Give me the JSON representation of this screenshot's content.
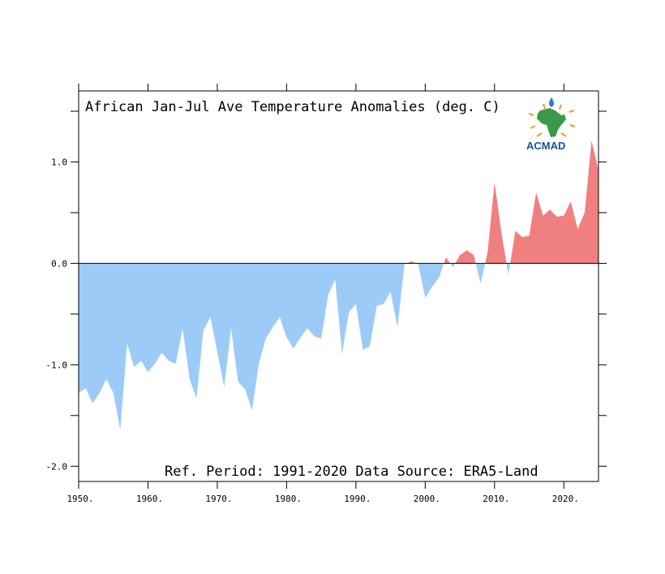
{
  "chart_data": {
    "type": "area",
    "title": "African Jan-Jul Ave Temperature Anomalies (deg. C)",
    "footnote": "Ref. Period: 1991-2020 Data Source: ERA5-Land",
    "logo_text": "ACMAD",
    "xlim": [
      1950,
      2025
    ],
    "ylim": [
      -2.15,
      1.7
    ],
    "x_ticks": [
      1950,
      1960,
      1970,
      1980,
      1990,
      2000,
      2010,
      2020
    ],
    "x_tick_labels": [
      "1950.",
      "1960.",
      "1970.",
      "1980.",
      "1990.",
      "2000.",
      "2010.",
      "2020."
    ],
    "y_ticks": [
      1.0,
      0.0,
      -1.0,
      -2.0
    ],
    "y_tick_labels": [
      "1.0",
      "0.0",
      "-1.0",
      "-2.0"
    ],
    "colors": {
      "positive": "#f08080",
      "negative": "#9ccbf7"
    },
    "x": [
      1950,
      1951,
      1952,
      1953,
      1954,
      1955,
      1956,
      1957,
      1958,
      1959,
      1960,
      1961,
      1962,
      1963,
      1964,
      1965,
      1966,
      1967,
      1968,
      1969,
      1970,
      1971,
      1972,
      1973,
      1974,
      1975,
      1976,
      1977,
      1978,
      1979,
      1980,
      1981,
      1982,
      1983,
      1984,
      1985,
      1986,
      1987,
      1988,
      1989,
      1990,
      1991,
      1992,
      1993,
      1994,
      1995,
      1996,
      1997,
      1998,
      1999,
      2000,
      2001,
      2002,
      2003,
      2004,
      2005,
      2006,
      2007,
      2008,
      2009,
      2010,
      2011,
      2012,
      2013,
      2014,
      2015,
      2016,
      2017,
      2018,
      2019,
      2020,
      2021,
      2022,
      2023,
      2024,
      2025
    ],
    "values": [
      -1.28,
      -1.23,
      -1.38,
      -1.28,
      -1.14,
      -1.28,
      -1.64,
      -0.79,
      -1.02,
      -0.96,
      -1.07,
      -0.99,
      -0.88,
      -0.96,
      -0.99,
      -0.64,
      -1.14,
      -1.33,
      -0.66,
      -0.53,
      -0.87,
      -1.22,
      -0.64,
      -1.17,
      -1.24,
      -1.45,
      -0.99,
      -0.74,
      -0.63,
      -0.53,
      -0.73,
      -0.84,
      -0.73,
      -0.64,
      -0.72,
      -0.74,
      -0.31,
      -0.16,
      -0.89,
      -0.48,
      -0.4,
      -0.85,
      -0.82,
      -0.42,
      -0.4,
      -0.28,
      -0.63,
      -0.01,
      0.02,
      -0.01,
      -0.34,
      -0.23,
      -0.14,
      0.06,
      -0.04,
      0.08,
      0.13,
      0.08,
      -0.2,
      0.11,
      0.8,
      0.3,
      -0.11,
      0.32,
      0.26,
      0.27,
      0.7,
      0.47,
      0.53,
      0.46,
      0.47,
      0.61,
      0.34,
      0.5,
      1.21,
      0.92
    ]
  }
}
